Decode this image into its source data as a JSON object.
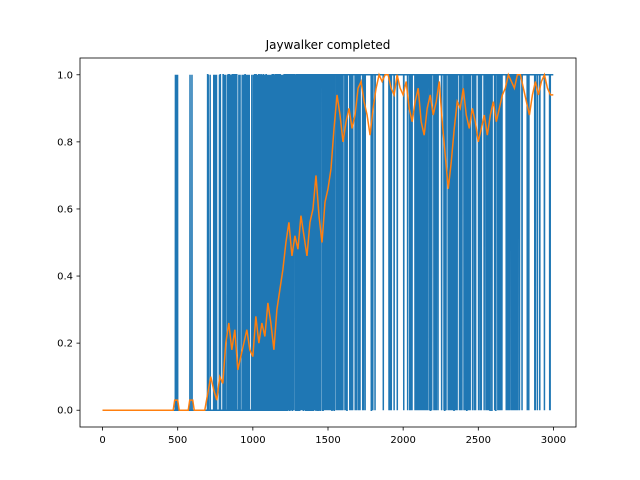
{
  "chart_data": {
    "type": "line",
    "title": "Jaywalker completed",
    "xlabel": "",
    "ylabel": "",
    "xlim": [
      -150,
      3150
    ],
    "ylim": [
      -0.05,
      1.05
    ],
    "grid": false,
    "xticks": [
      0,
      500,
      1000,
      1500,
      2000,
      2500,
      3000
    ],
    "yticks": [
      0.0,
      0.2,
      0.4,
      0.6,
      0.8,
      1.0
    ],
    "xtick_labels": [
      "0",
      "500",
      "1000",
      "1500",
      "2000",
      "2500",
      "3000"
    ],
    "ytick_labels": [
      "0.0",
      "0.2",
      "0.4",
      "0.6",
      "0.8",
      "1.0"
    ],
    "series": [
      {
        "kind": "raw binary episode outcome (dense 0/1 oscillation)",
        "color": "#1f77b4",
        "x_range": [
          0,
          2999
        ],
        "segments": [
          {
            "x_start": 0,
            "x_end": 480,
            "p_success": 0.0
          },
          {
            "x_start": 480,
            "x_end": 500,
            "p_success": 0.1
          },
          {
            "x_start": 500,
            "x_end": 580,
            "p_success": 0.0
          },
          {
            "x_start": 580,
            "x_end": 600,
            "p_success": 0.1
          },
          {
            "x_start": 600,
            "x_end": 690,
            "p_success": 0.0
          },
          {
            "x_start": 690,
            "x_end": 760,
            "p_success": 0.08
          },
          {
            "x_start": 760,
            "x_end": 800,
            "p_success": 0.03
          },
          {
            "x_start": 800,
            "x_end": 1000,
            "p_success": 0.2
          },
          {
            "x_start": 1000,
            "x_end": 1200,
            "p_success": 0.35
          },
          {
            "x_start": 1200,
            "x_end": 1400,
            "p_success": 0.55
          },
          {
            "x_start": 1400,
            "x_end": 1550,
            "p_success": 0.7
          },
          {
            "x_start": 1550,
            "x_end": 1700,
            "p_success": 0.88
          },
          {
            "x_start": 1700,
            "x_end": 2000,
            "p_success": 0.93
          },
          {
            "x_start": 2000,
            "x_end": 2400,
            "p_success": 0.9
          },
          {
            "x_start": 2400,
            "x_end": 2700,
            "p_success": 0.9
          },
          {
            "x_start": 2700,
            "x_end": 2999,
            "p_success": 0.95
          }
        ]
      },
      {
        "kind": "moving average",
        "color": "#ff7f0e",
        "x": [
          0,
          470,
          480,
          500,
          510,
          570,
          580,
          600,
          610,
          680,
          700,
          720,
          740,
          760,
          780,
          800,
          820,
          840,
          860,
          880,
          900,
          920,
          940,
          960,
          980,
          1000,
          1020,
          1040,
          1060,
          1080,
          1100,
          1120,
          1140,
          1160,
          1180,
          1200,
          1220,
          1240,
          1260,
          1280,
          1300,
          1320,
          1340,
          1360,
          1380,
          1400,
          1420,
          1440,
          1460,
          1480,
          1500,
          1520,
          1540,
          1560,
          1580,
          1600,
          1620,
          1640,
          1660,
          1680,
          1700,
          1720,
          1740,
          1760,
          1780,
          1800,
          1820,
          1840,
          1860,
          1880,
          1900,
          1920,
          1940,
          1960,
          1980,
          2000,
          2020,
          2040,
          2060,
          2080,
          2100,
          2120,
          2140,
          2160,
          2180,
          2200,
          2220,
          2240,
          2260,
          2280,
          2300,
          2320,
          2340,
          2360,
          2380,
          2400,
          2420,
          2440,
          2460,
          2480,
          2500,
          2520,
          2540,
          2560,
          2580,
          2600,
          2620,
          2640,
          2660,
          2680,
          2700,
          2720,
          2740,
          2760,
          2780,
          2800,
          2820,
          2840,
          2860,
          2880,
          2900,
          2920,
          2940,
          2960,
          2980,
          2999
        ],
        "y": [
          0.0,
          0.0,
          0.03,
          0.03,
          0.0,
          0.0,
          0.03,
          0.03,
          0.0,
          0.0,
          0.05,
          0.1,
          0.06,
          0.03,
          0.1,
          0.08,
          0.2,
          0.26,
          0.18,
          0.24,
          0.12,
          0.16,
          0.2,
          0.24,
          0.18,
          0.16,
          0.28,
          0.2,
          0.26,
          0.22,
          0.32,
          0.26,
          0.18,
          0.3,
          0.36,
          0.42,
          0.5,
          0.56,
          0.46,
          0.52,
          0.48,
          0.58,
          0.52,
          0.46,
          0.56,
          0.6,
          0.7,
          0.58,
          0.5,
          0.62,
          0.66,
          0.72,
          0.84,
          0.94,
          0.88,
          0.8,
          0.86,
          0.9,
          0.84,
          0.88,
          0.96,
          0.98,
          0.92,
          0.88,
          0.82,
          0.9,
          0.96,
          1.0,
          0.98,
          1.0,
          1.0,
          0.96,
          0.94,
          1.0,
          0.96,
          0.94,
          0.98,
          0.9,
          0.86,
          0.92,
          0.96,
          0.86,
          0.82,
          0.9,
          0.94,
          0.88,
          0.92,
          0.98,
          0.86,
          0.76,
          0.66,
          0.74,
          0.84,
          0.92,
          0.9,
          0.96,
          0.88,
          0.84,
          0.9,
          0.86,
          0.8,
          0.84,
          0.88,
          0.82,
          0.88,
          0.92,
          0.86,
          0.9,
          0.94,
          0.96,
          1.0,
          0.98,
          0.96,
          1.0,
          1.0,
          0.96,
          0.92,
          0.88,
          0.94,
          0.98,
          0.94,
          0.98,
          1.0,
          0.96,
          0.94,
          0.94
        ]
      }
    ]
  }
}
